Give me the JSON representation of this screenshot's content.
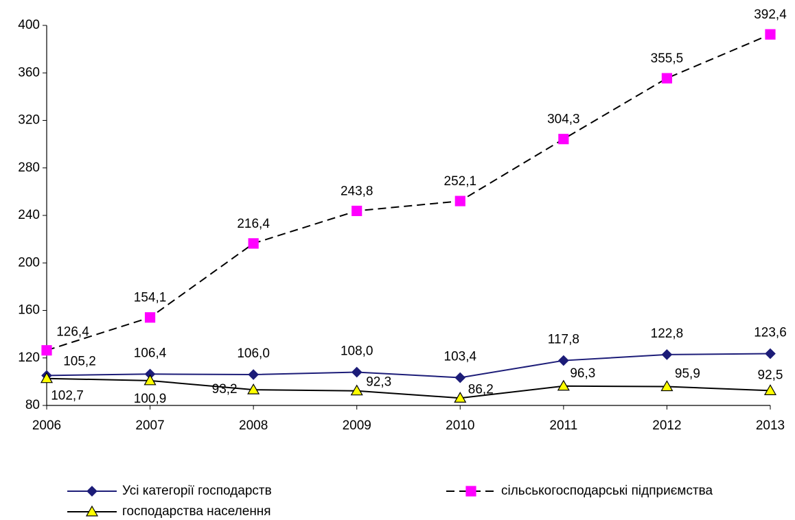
{
  "chart_data": {
    "type": "line",
    "categories": [
      "2006",
      "2007",
      "2008",
      "2009",
      "2010",
      "2011",
      "2012",
      "2013"
    ],
    "ylim": [
      80,
      400
    ],
    "yticks": [
      80,
      120,
      160,
      200,
      240,
      280,
      320,
      360,
      400
    ],
    "grid": false,
    "legend": "bottom",
    "series": [
      {
        "name": "Усі категорії господарств",
        "color": "#1c1c78",
        "marker": "diamond",
        "marker_color": "#1c1c78",
        "dash": false,
        "values": [
          105.2,
          106.4,
          106.0,
          108.0,
          103.4,
          117.8,
          122.8,
          123.6
        ],
        "value_labels": [
          "105,2",
          "106,4",
          "106,0",
          "108,0",
          "103,4",
          "117,8",
          "122,8",
          "123,6"
        ]
      },
      {
        "name": "сільськогосподарські підприємства",
        "color": "#000000",
        "marker": "square",
        "marker_color": "#ff00ff",
        "dash": true,
        "values": [
          126.4,
          154.1,
          216.4,
          243.8,
          252.1,
          304.3,
          355.5,
          392.4
        ],
        "value_labels": [
          "126,4",
          "154,1",
          "216,4",
          "243,8",
          "252,1",
          "304,3",
          "355,5",
          "392,4"
        ]
      },
      {
        "name": "господарства населення",
        "color": "#000000",
        "marker": "triangle",
        "marker_color": "#ffff00",
        "dash": false,
        "values": [
          102.7,
          100.9,
          93.2,
          92.3,
          86.2,
          96.3,
          95.9,
          92.5
        ],
        "value_labels": [
          "102,7",
          "100,9",
          "93,2",
          "92,3",
          "86,2",
          "96,3",
          "95,9",
          "92,5"
        ]
      }
    ]
  }
}
